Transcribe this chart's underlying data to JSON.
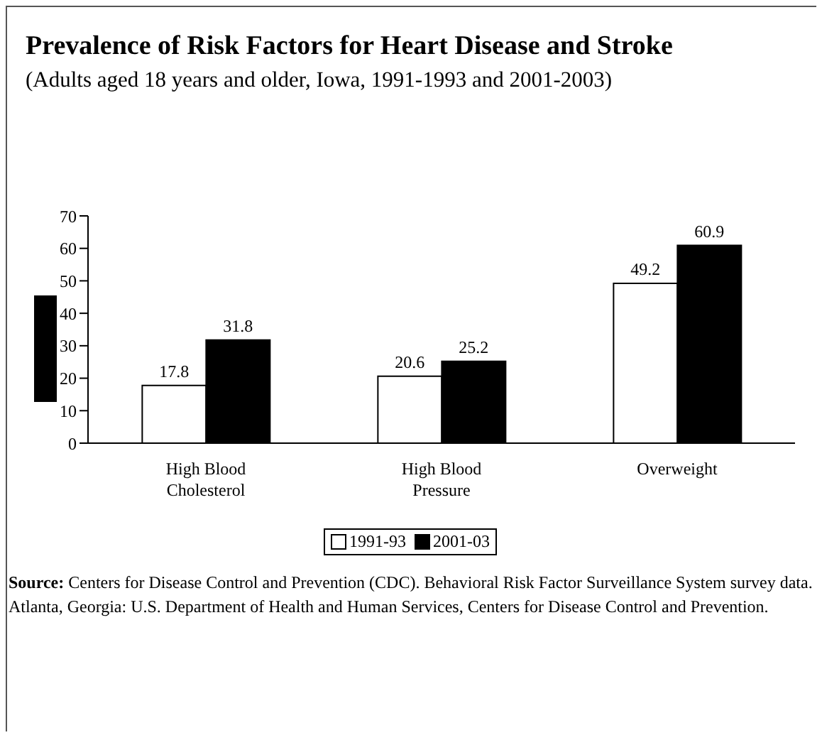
{
  "chart_data": {
    "type": "bar",
    "title": "Prevalence of Risk Factors for Heart Disease and Stroke",
    "subtitle": "(Adults aged 18 years and older, Iowa, 1991-1993 and 2001-2003)",
    "categories": [
      "High Blood Cholesterol",
      "High Blood Pressure",
      "Overweight"
    ],
    "series": [
      {
        "name": "1991-93",
        "color": "#ffffff",
        "values": [
          17.8,
          20.6,
          49.2
        ]
      },
      {
        "name": "2001-03",
        "color": "#000000",
        "values": [
          31.8,
          25.2,
          60.9
        ]
      }
    ],
    "ylim": [
      0,
      70
    ],
    "yticks": [
      0,
      10,
      20,
      30,
      40,
      50,
      60,
      70
    ],
    "grid": false,
    "legend": "bottom",
    "data_labels": true,
    "annotations": [
      "Source: Centers for Disease Control and Prevention (CDC). Behavioral Risk Factor Surveillance System survey data. Atlanta, Georgia: U.S. Department of Health and Human Services, Centers for Disease Control and Prevention."
    ]
  }
}
